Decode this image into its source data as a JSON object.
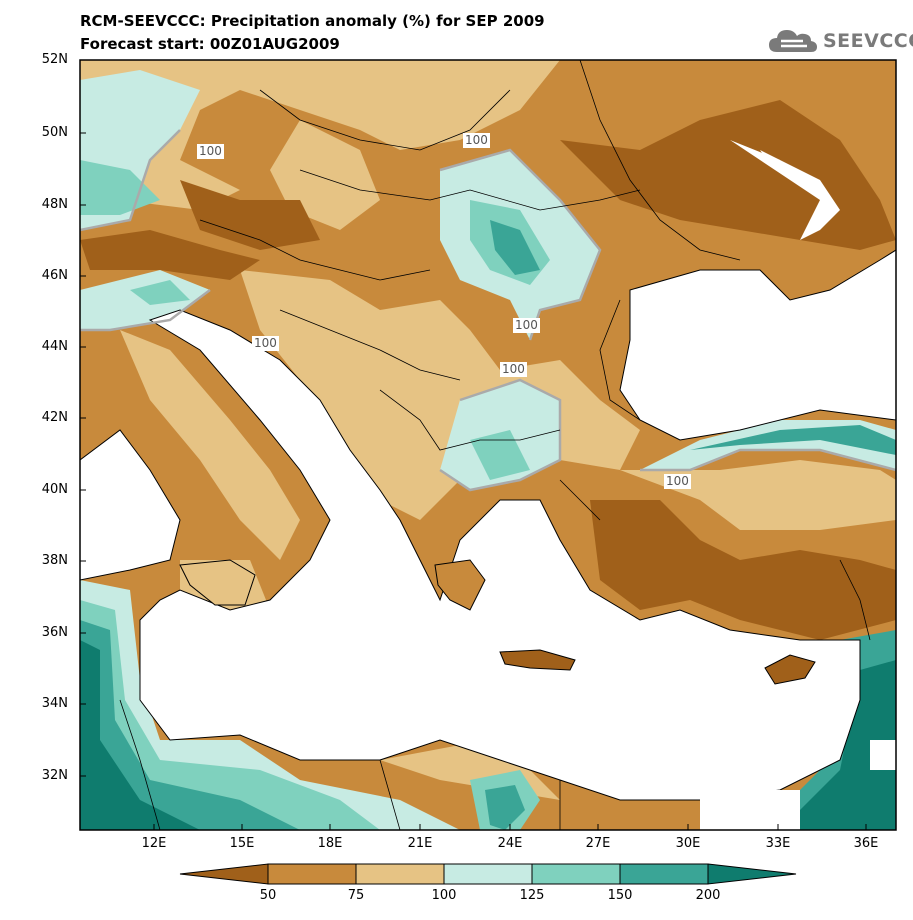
{
  "title_line1": "RCM-SEEVCCC: Precipitation anomaly (%) for SEP 2009",
  "title_line2": "Forecast start: 00Z01AUG2009",
  "logo_text": "SEEVCCC",
  "logo_icon": "cloud-icon",
  "lat_labels": [
    "52N",
    "50N",
    "48N",
    "46N",
    "44N",
    "42N",
    "40N",
    "38N",
    "36N",
    "34N",
    "32N"
  ],
  "lon_labels": [
    "12E",
    "15E",
    "18E",
    "21E",
    "24E",
    "27E",
    "30E",
    "33E",
    "36E"
  ],
  "contour_labels": [
    "100",
    "100",
    "100",
    "100",
    "100",
    "100"
  ],
  "colorbar": {
    "labels": [
      "50",
      "75",
      "100",
      "125",
      "150",
      "200"
    ],
    "colors": [
      "#a0601a",
      "#c88a3c",
      "#e6c384",
      "#c7ebe3",
      "#7fd1be",
      "#3aa596",
      "#0f7c6e"
    ]
  },
  "colors": {
    "very_dry": "#a0601a",
    "dry": "#c88a3c",
    "slightly_dry": "#e6c384",
    "slightly_wet": "#c7ebe3",
    "wet": "#7fd1be",
    "very_wet": "#3aa596",
    "extreme_wet": "#0f7c6e",
    "sea": "#ffffff"
  }
}
